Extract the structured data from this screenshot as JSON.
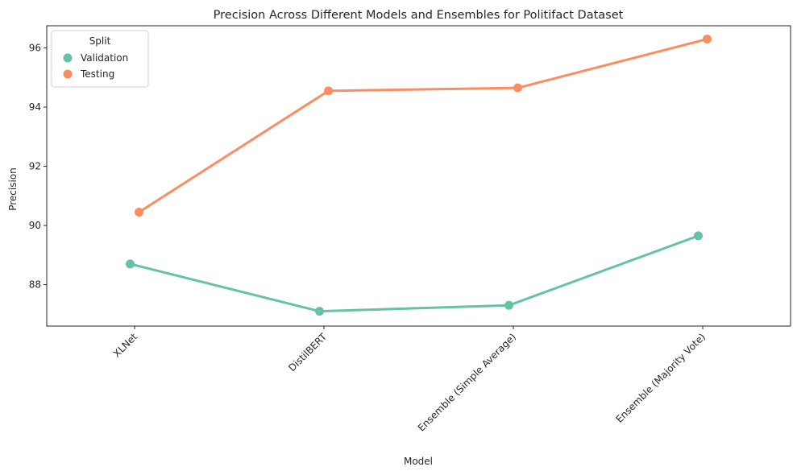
{
  "chart_data": {
    "type": "line",
    "title": "Precision Across Different Models and Ensembles for Politifact Dataset",
    "xlabel": "Model",
    "ylabel": "Precision",
    "categories": [
      "XLNet",
      "DistilBERT",
      "Ensemble (Simple Average)",
      "Ensemble (Majority Vote)"
    ],
    "series": [
      {
        "name": "Validation",
        "color": "#66c2a5",
        "values": [
          88.7,
          87.1,
          87.3,
          89.65
        ]
      },
      {
        "name": "Testing",
        "color": "#fc8d62",
        "values": [
          90.45,
          94.55,
          94.65,
          96.3
        ]
      }
    ],
    "ylim": [
      86.6,
      96.75
    ],
    "yticks": [
      88,
      90,
      92,
      94,
      96
    ],
    "grid": false,
    "legend": {
      "title": "Split",
      "placement": "top-left"
    },
    "x_tick_rotation": 45
  }
}
